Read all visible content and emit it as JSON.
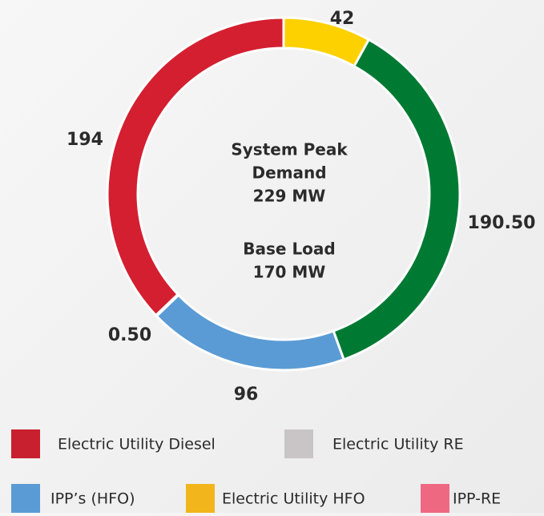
{
  "chart_data": {
    "type": "pie",
    "values": [
      42,
      190.5,
      96,
      0.5,
      194
    ],
    "value_labels": [
      "42",
      "190.50",
      "96",
      "0.50",
      "194"
    ],
    "colors": [
      "#fdd000",
      "#007a33",
      "#5b9bd5",
      "#c8c4c6",
      "#d41f30"
    ],
    "center_text": [
      "System Peak",
      "Demand",
      "229 MW",
      "Base Load",
      "170 MW"
    ],
    "legend": [
      {
        "name": "Electric Utility Diesel",
        "color": "#c8202f"
      },
      {
        "name": "Electric Utility RE",
        "color": "#c9c5c7"
      },
      {
        "name": "IPP’s (HFO)",
        "color": "#5b9bd5"
      },
      {
        "name": "Electric Utility HFO",
        "color": "#f2b51c"
      },
      {
        "name": "IPP-RE",
        "color": "#ef6882"
      }
    ]
  }
}
